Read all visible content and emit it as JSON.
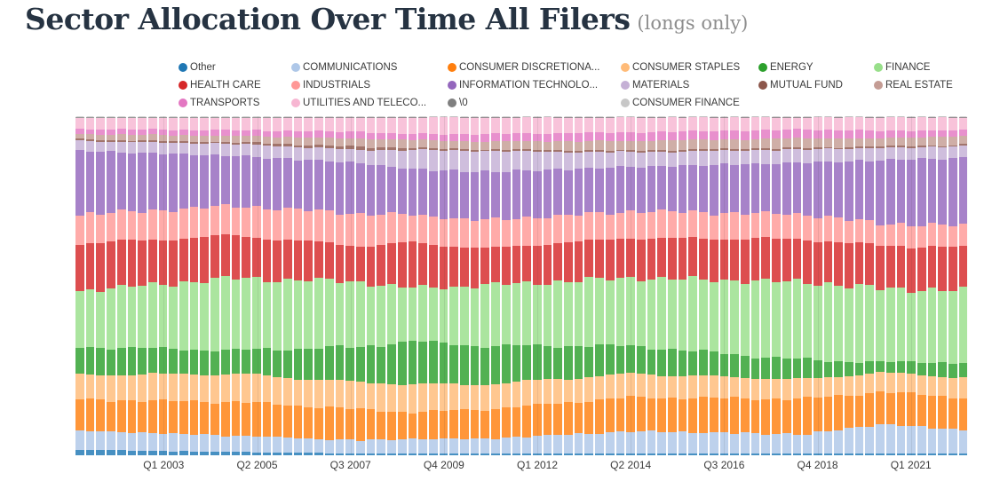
{
  "page": {
    "title": "Sector Allocation Over Time All Filers",
    "subtitle": "(longs only)"
  },
  "legend": {
    "rows": [
      [
        {
          "label": "Other",
          "color": "#1f77b4"
        },
        {
          "label": "COMMUNICATIONS",
          "color": "#aec7e8"
        },
        {
          "label": "CONSUMER DISCRETIONA...",
          "color": "#ff7f0e"
        },
        {
          "label": "CONSUMER STAPLES",
          "color": "#ffbb78"
        },
        {
          "label": "ENERGY",
          "color": "#2ca02c"
        },
        {
          "label": "FINANCE",
          "color": "#98df8a"
        }
      ],
      [
        {
          "label": "HEALTH CARE",
          "color": "#d62728"
        },
        {
          "label": "INDUSTRIALS",
          "color": "#ff9896"
        },
        {
          "label": "INFORMATION TECHNOLO...",
          "color": "#9467bd"
        },
        {
          "label": "MATERIALS",
          "color": "#c5b0d5"
        },
        {
          "label": "MUTUAL FUND",
          "color": "#8c564b"
        },
        {
          "label": "REAL ESTATE",
          "color": "#c49c94"
        }
      ],
      [
        {
          "label": "TRANSPORTS",
          "color": "#e377c2"
        },
        {
          "label": "UTILITIES AND TELECO...",
          "color": "#f7b6d2"
        },
        {
          "label": "\\0",
          "color": "#7f7f7f"
        },
        {
          "label": "CONSUMER FINANCE",
          "color": "#c7c7c7"
        }
      ]
    ]
  },
  "chart_data": {
    "type": "bar",
    "stacked": true,
    "unit": "percent of long portfolio value",
    "ylim": [
      0,
      100
    ],
    "legend_position": "top",
    "grid": "faint vertical lines at x ticks only, no y axis shown",
    "x_start": "Q1 2001",
    "x_end": "Q2 2022",
    "num_bars": 86,
    "x_ticks": [
      {
        "index": 8,
        "label": "Q1 2003"
      },
      {
        "index": 17,
        "label": "Q2 2005"
      },
      {
        "index": 26,
        "label": "Q3 2007"
      },
      {
        "index": 35,
        "label": "Q4 2009"
      },
      {
        "index": 44,
        "label": "Q1 2012"
      },
      {
        "index": 53,
        "label": "Q2 2014"
      },
      {
        "index": 62,
        "label": "Q3 2016"
      },
      {
        "index": 71,
        "label": "Q4 2018"
      },
      {
        "index": 80,
        "label": "Q1 2021"
      }
    ],
    "anchor_note": "values are percent of total, estimated at anchor quarters; bars between anchors interpolate",
    "anchor_indices": [
      0,
      15,
      27,
      32,
      39,
      53,
      70,
      77,
      85
    ],
    "anchor_quarters": [
      "Q1 2001",
      "Q4 2004",
      "Q4 2007",
      "Q1 2009",
      "Q4 2010",
      "Q2 2014",
      "Q3 2018",
      "Q2 2020",
      "Q2 2022"
    ],
    "series": [
      {
        "name": "Other",
        "color": "#1f77b4",
        "values": [
          1.6,
          1.0,
          0.5,
          0.5,
          0.5,
          0.5,
          0.5,
          0.5,
          0.5
        ]
      },
      {
        "name": "COMMUNICATIONS",
        "color": "#aec7e8",
        "values": [
          5.7,
          4.8,
          3.9,
          4.4,
          4.4,
          6.6,
          5.7,
          8.7,
          7.0
        ]
      },
      {
        "name": "CONSUMER DISCRETIONA...",
        "color": "#ff7f0e",
        "values": [
          9.2,
          10.0,
          9.2,
          7.9,
          8.7,
          10.0,
          10.5,
          9.6,
          9.6
        ]
      },
      {
        "name": "CONSUMER STAPLES",
        "color": "#ffbb78",
        "values": [
          7.4,
          8.3,
          7.9,
          8.3,
          7.4,
          7.0,
          5.7,
          5.7,
          6.1
        ]
      },
      {
        "name": "ENERGY",
        "color": "#2ca02c",
        "values": [
          8.3,
          7.0,
          10.5,
          12.7,
          11.4,
          8.3,
          5.7,
          3.1,
          4.4
        ]
      },
      {
        "name": "FINANCE",
        "color": "#98df8a",
        "values": [
          16.6,
          21.4,
          19.2,
          15.7,
          17.9,
          20.1,
          23.1,
          21.8,
          21.4
        ]
      },
      {
        "name": "HEALTH CARE",
        "color": "#d62728",
        "values": [
          14.0,
          12.7,
          10.5,
          13.5,
          10.9,
          11.8,
          12.7,
          12.7,
          12.7
        ]
      },
      {
        "name": "INDUSTRIALS",
        "color": "#ff9896",
        "values": [
          8.7,
          8.7,
          9.6,
          8.3,
          8.3,
          7.9,
          7.4,
          6.5,
          6.5
        ]
      },
      {
        "name": "INFORMATION TECHNOLO...",
        "color": "#9467bd",
        "values": [
          18.8,
          14.9,
          14.9,
          13.5,
          14.4,
          13.1,
          15.3,
          18.8,
          20.1
        ]
      },
      {
        "name": "MATERIALS",
        "color": "#c5b0d5",
        "values": [
          3.0,
          3.5,
          3.9,
          5.7,
          6.1,
          4.4,
          3.9,
          3.5,
          3.5
        ]
      },
      {
        "name": "MUTUAL FUND",
        "color": "#8c564b",
        "values": [
          0.5,
          0.5,
          0.9,
          0.6,
          0.5,
          0.5,
          0.5,
          0.5,
          0.5
        ]
      },
      {
        "name": "REAL ESTATE",
        "color": "#c49c94",
        "values": [
          1.6,
          1.9,
          2.4,
          2.4,
          2.4,
          2.8,
          2.8,
          2.4,
          2.6
        ]
      },
      {
        "name": "TRANSPORTS",
        "color": "#e377c2",
        "values": [
          1.4,
          1.7,
          2.0,
          1.7,
          2.2,
          2.6,
          2.6,
          2.2,
          1.7
        ]
      },
      {
        "name": "UTILITIES AND TELECO...",
        "color": "#f7b6d2",
        "values": [
          3.4,
          3.7,
          4.3,
          5.0,
          5.0,
          4.5,
          3.7,
          4.1,
          3.9
        ]
      },
      {
        "name": "\\0",
        "color": "#7f7f7f",
        "values": [
          0.2,
          0.2,
          0.2,
          0.15,
          0.15,
          0.1,
          0.1,
          0.1,
          0.1
        ]
      },
      {
        "name": "CONSUMER FINANCE",
        "color": "#c7c7c7",
        "values": [
          0.2,
          0.2,
          0.1,
          0.1,
          0.1,
          0.1,
          0.1,
          0.1,
          0.1
        ]
      }
    ]
  }
}
